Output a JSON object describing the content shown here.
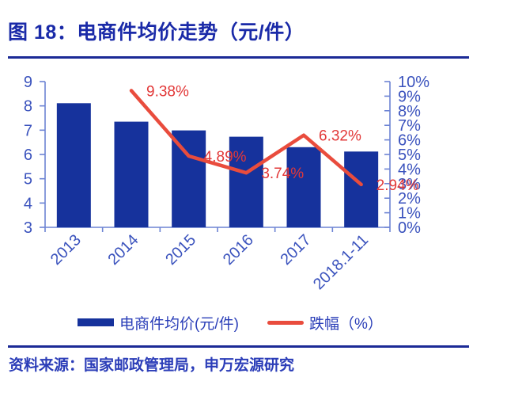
{
  "figure": {
    "title": "图 18：电商件均价走势（元/件）",
    "source": "资料来源：国家邮政管理局，申万宏源研究"
  },
  "legend": {
    "items": [
      {
        "swatch": "bar-swatch",
        "label": "电商件均价(元/件)"
      },
      {
        "swatch": "line-swatch",
        "label": "跌幅（%）"
      }
    ]
  },
  "colors": {
    "title": "#1a2aa8",
    "divider": "#1b2a96",
    "bar": "#16329c",
    "line": "#e94c3d",
    "data_label": "#e23838",
    "axis_text": "#3a52bd",
    "axis_line": "#6d84d4",
    "legend_text": "#2a3eb8",
    "source_text": "#2b3db8"
  },
  "chart_data": {
    "type": "bar+line",
    "title": "电商件均价走势（元/件）",
    "categories": [
      "2013",
      "2014",
      "2015",
      "2016",
      "2017",
      "2018.1-11"
    ],
    "series": [
      {
        "name": "电商件均价(元/件)",
        "type": "bar",
        "axis": "left",
        "values": [
          8.11,
          7.35,
          6.99,
          6.73,
          6.3,
          6.12
        ]
      },
      {
        "name": "跌幅（%）",
        "type": "line",
        "axis": "right",
        "values": [
          null,
          9.38,
          4.89,
          3.74,
          6.32,
          2.94
        ],
        "point_labels": [
          null,
          "9.38%",
          "4.89%",
          "3.74%",
          "6.32%",
          "2.94%"
        ]
      }
    ],
    "left_axis": {
      "min": 3,
      "max": 9,
      "step": 1,
      "tick_labels": [
        "9",
        "8",
        "7",
        "6",
        "5",
        "4",
        "3"
      ]
    },
    "right_axis": {
      "min": 0,
      "max": 10,
      "step": 1,
      "tick_labels": [
        "10%",
        "9%",
        "8%",
        "7%",
        "6%",
        "5%",
        "4%",
        "3%",
        "2%",
        "1%",
        "0%"
      ]
    },
    "grid": false,
    "legend_position": "bottom",
    "x_label_rotation_deg": -45
  }
}
